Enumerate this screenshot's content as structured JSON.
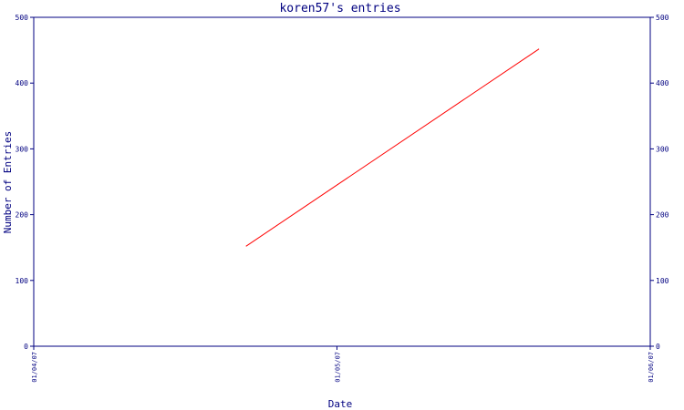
{
  "chart_data": {
    "type": "line",
    "title": "koren57's entries",
    "xlabel": "Date",
    "ylabel": "Number of Entries",
    "x_ticks": [
      "01/04/07",
      "01/05/07",
      "01/06/07"
    ],
    "y_ticks": [
      "0",
      "100",
      "200",
      "300",
      "400",
      "500"
    ],
    "ylim": [
      0,
      500
    ],
    "series": [
      {
        "color": "#ff0000",
        "points": [
          {
            "x": "2007-04-22",
            "y": 152
          },
          {
            "x": "2007-05-21",
            "y": 452
          }
        ]
      }
    ],
    "grid": false,
    "axis_color": "#000080",
    "right_axis_mirrored": true
  }
}
